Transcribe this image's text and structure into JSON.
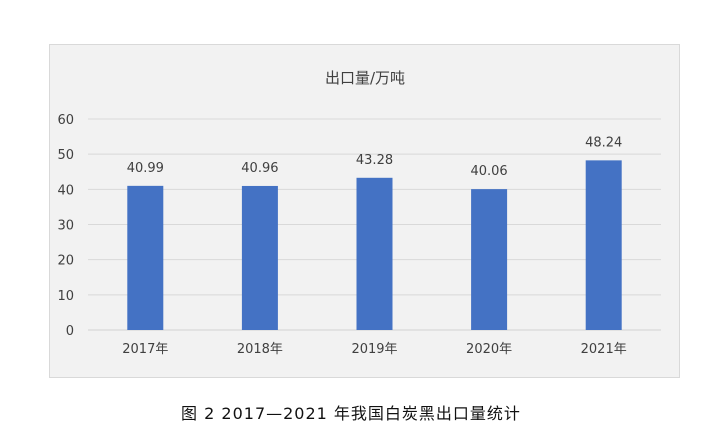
{
  "chart_data": {
    "type": "bar",
    "title": "出口量/万吨",
    "categories": [
      "2017年",
      "2018年",
      "2019年",
      "2020年",
      "2021年"
    ],
    "values": [
      40.99,
      40.96,
      43.28,
      40.06,
      48.24
    ],
    "value_labels": [
      "40.99",
      "40.96",
      "43.28",
      "40.06",
      "48.24"
    ],
    "ylim": [
      0,
      60
    ],
    "yticks": [
      0,
      10,
      20,
      30,
      40,
      50,
      60
    ],
    "grid": true,
    "legend": "none",
    "bar_color": "#4472c4",
    "grid_color": "#d9d9d9",
    "text_color": "#404040"
  },
  "caption": "图 2 2017—2021 年我国白炭黑出口量统计"
}
